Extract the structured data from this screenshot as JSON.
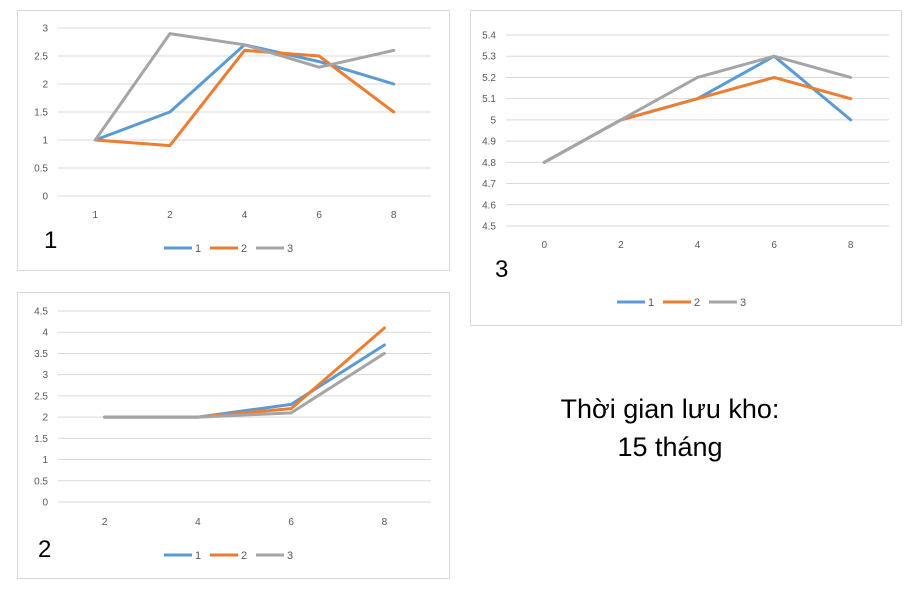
{
  "colors": {
    "series1": "#5B9BD5",
    "series2": "#ED7D31",
    "series3": "#A5A5A5",
    "grid": "#d9d9d9",
    "tick": "#595959"
  },
  "chart_data": [
    {
      "type": "line",
      "label": "1",
      "categories": [
        "1",
        "2",
        "4",
        "6",
        "8"
      ],
      "yticks": [
        "0",
        "0.5",
        "1",
        "1.5",
        "2",
        "2.5",
        "3"
      ],
      "ylim": [
        0,
        3
      ],
      "series": [
        {
          "name": "1",
          "values": [
            1,
            1.5,
            2.7,
            2.4,
            2.0
          ]
        },
        {
          "name": "2",
          "values": [
            1,
            0.9,
            2.6,
            2.5,
            1.5
          ]
        },
        {
          "name": "3",
          "values": [
            1,
            2.9,
            2.7,
            2.3,
            2.6
          ]
        }
      ]
    },
    {
      "type": "line",
      "label": "2",
      "categories": [
        "2",
        "4",
        "6",
        "8"
      ],
      "yticks": [
        "0",
        "0.5",
        "1",
        "1.5",
        "2",
        "2.5",
        "3",
        "3.5",
        "4",
        "4.5"
      ],
      "ylim": [
        0,
        4.5
      ],
      "series": [
        {
          "name": "1",
          "values": [
            2,
            2,
            2.3,
            3.7
          ]
        },
        {
          "name": "2",
          "values": [
            2,
            2,
            2.2,
            4.1
          ]
        },
        {
          "name": "3",
          "values": [
            2,
            2,
            2.1,
            3.5
          ]
        }
      ]
    },
    {
      "type": "line",
      "label": "3",
      "categories": [
        "0",
        "2",
        "4",
        "6",
        "8"
      ],
      "yticks": [
        "4.5",
        "4.6",
        "4.7",
        "4.8",
        "4.9",
        "5",
        "5.1",
        "5.2",
        "5.3",
        "5.4"
      ],
      "ylim": [
        4.5,
        5.4
      ],
      "series": [
        {
          "name": "1",
          "values": [
            4.8,
            5.0,
            5.1,
            5.3,
            5.0
          ]
        },
        {
          "name": "2",
          "values": [
            4.8,
            5.0,
            5.1,
            5.2,
            5.1
          ]
        },
        {
          "name": "3",
          "values": [
            4.8,
            5.0,
            5.2,
            5.3,
            5.2
          ]
        }
      ]
    }
  ],
  "note": {
    "line1": "Thời gian lưu kho:",
    "line2": "15 tháng"
  }
}
